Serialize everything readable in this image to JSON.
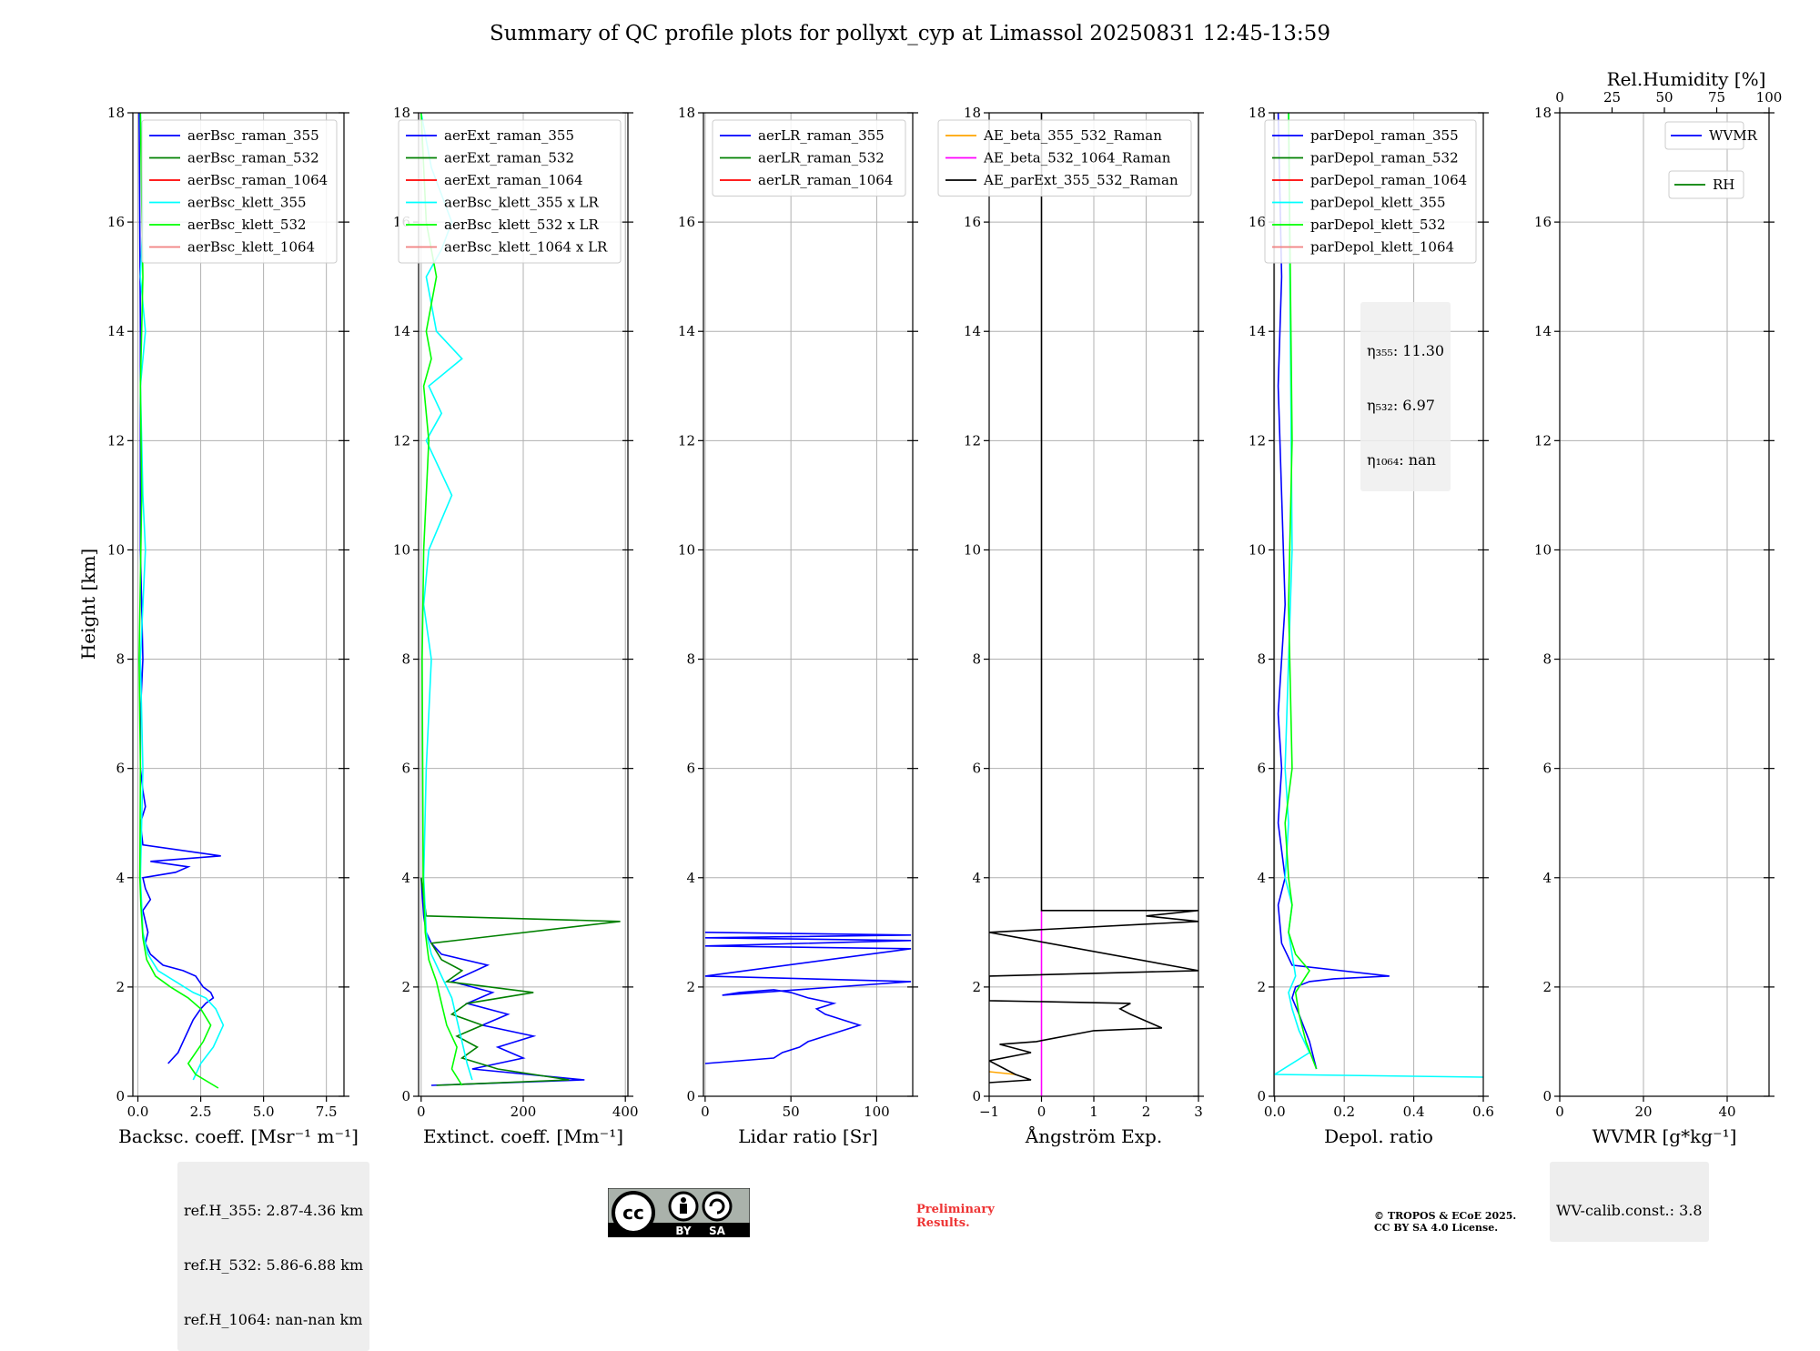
{
  "title": "Summary of QC profile plots for pollyxt_cyp at Limassol 20250831 12:45-13:59",
  "y_label": "Height [km]",
  "colors": {
    "blue": "#0000ff",
    "green": "#008000",
    "red": "#ff0000",
    "cyan": "#00ffff",
    "lime": "#00ff00",
    "salmon": "#f08080",
    "orange": "#ffa500",
    "magenta": "#ff00ff",
    "black": "#000000"
  },
  "chart_data": [
    {
      "type": "line",
      "xlabel": "Backsc. coeff. [Msr⁻¹ m⁻¹]",
      "ylabel": "Height [km]",
      "xlim": [
        -0.2,
        8.2
      ],
      "ylim": [
        0,
        18
      ],
      "xticks": [
        0,
        2.5,
        5.0,
        7.5
      ],
      "xtick_labels": [
        "0.0",
        "2.5",
        "5.0",
        "7.5"
      ],
      "yticks": [
        0,
        2,
        4,
        6,
        8,
        10,
        12,
        14,
        16,
        18
      ],
      "legend": "top-right",
      "grid": true,
      "series": [
        {
          "name": "aerBsc_raman_355",
          "color": "#0000ff",
          "x": [
            1.2,
            1.4,
            1.6,
            1.8,
            2.0,
            2.2,
            2.5,
            2.7,
            3.0,
            2.9,
            2.6,
            2.3,
            1.8,
            1.0,
            0.5,
            0.3,
            0.4,
            0.3,
            0.2,
            0.5,
            0.3,
            0.2,
            1.5,
            2.0,
            0.5,
            3.3,
            0.2,
            0.1,
            0.3,
            0.2,
            0.1,
            0.1,
            0.2,
            0.1,
            0.1,
            0.05
          ],
          "y": [
            0.6,
            0.7,
            0.8,
            1.0,
            1.2,
            1.4,
            1.6,
            1.7,
            1.8,
            1.9,
            2.0,
            2.2,
            2.3,
            2.4,
            2.6,
            2.8,
            3.0,
            3.2,
            3.4,
            3.6,
            3.8,
            4.0,
            4.1,
            4.2,
            4.3,
            4.4,
            4.6,
            5.0,
            5.3,
            5.6,
            6.0,
            7.0,
            8.0,
            10.0,
            14.0,
            18.0
          ]
        },
        {
          "name": "aerBsc_raman_532",
          "color": "#008000",
          "x": [],
          "y": []
        },
        {
          "name": "aerBsc_raman_1064",
          "color": "#ff0000",
          "x": [],
          "y": []
        },
        {
          "name": "aerBsc_klett_355",
          "color": "#00ffff",
          "x": [
            2.2,
            2.5,
            3.0,
            3.4,
            3.1,
            2.7,
            2.2,
            1.5,
            0.8,
            0.4,
            0.2,
            0.15,
            0.1,
            0.2,
            0.1,
            0.3,
            0.2,
            0.15,
            0.1,
            0.3,
            0.1,
            0.2,
            0.1
          ],
          "y": [
            0.3,
            0.6,
            0.9,
            1.3,
            1.6,
            1.8,
            1.9,
            2.1,
            2.3,
            2.6,
            3.0,
            3.5,
            4.0,
            6.0,
            8.0,
            10.0,
            11.0,
            12.0,
            13.0,
            14.0,
            15.0,
            16.0,
            18.0
          ]
        },
        {
          "name": "aerBsc_klett_532",
          "color": "#00ff00",
          "x": [
            3.2,
            2.3,
            2.0,
            2.6,
            2.9,
            2.5,
            2.0,
            1.3,
            0.7,
            0.35,
            0.2,
            0.12,
            0.08,
            0.1,
            0.05,
            0.15,
            0.1,
            0.2,
            0.1
          ],
          "y": [
            0.15,
            0.4,
            0.6,
            1.0,
            1.3,
            1.6,
            1.8,
            2.0,
            2.2,
            2.5,
            2.9,
            3.5,
            4.0,
            6.0,
            8.0,
            11.0,
            13.0,
            15.0,
            18.0
          ]
        },
        {
          "name": "aerBsc_klett_1064",
          "color": "#f08080",
          "x": [],
          "y": []
        }
      ]
    },
    {
      "type": "line",
      "xlabel": "Extinct. coeff. [Mm⁻¹]",
      "xlim": [
        -5,
        405
      ],
      "ylim": [
        0,
        18
      ],
      "xticks": [
        0,
        200,
        400
      ],
      "xtick_labels": [
        "0",
        "200",
        "400"
      ],
      "yticks": [
        0,
        2,
        4,
        6,
        8,
        10,
        12,
        14,
        16,
        18
      ],
      "legend": "top-right",
      "grid": true,
      "series": [
        {
          "name": "aerExt_raman_355",
          "color": "#0000ff",
          "x": [
            20,
            320,
            100,
            200,
            150,
            220,
            120,
            170,
            90,
            140,
            60,
            130,
            40,
            20,
            10,
            5,
            0
          ],
          "y": [
            0.2,
            0.3,
            0.5,
            0.7,
            0.9,
            1.1,
            1.3,
            1.5,
            1.7,
            1.9,
            2.1,
            2.4,
            2.6,
            2.8,
            3.0,
            3.3,
            4.0
          ]
        },
        {
          "name": "aerExt_raman_532",
          "color": "#008000",
          "x": [
            30,
            290,
            150,
            80,
            110,
            70,
            120,
            60,
            90,
            220,
            50,
            80,
            40,
            20,
            390,
            10,
            0
          ],
          "y": [
            0.2,
            0.3,
            0.5,
            0.7,
            0.9,
            1.1,
            1.3,
            1.5,
            1.7,
            1.9,
            2.1,
            2.3,
            2.5,
            2.8,
            3.2,
            3.3,
            4.0
          ]
        },
        {
          "name": "aerExt_raman_1064",
          "color": "#ff0000",
          "x": [],
          "y": []
        },
        {
          "name": "aerBsc_klett_355 x LR",
          "color": "#00ffff",
          "x": [
            100,
            90,
            80,
            70,
            60,
            40,
            20,
            10,
            5,
            10,
            20,
            5,
            15,
            60,
            10,
            40,
            15,
            80,
            30,
            20,
            10,
            40,
            60,
            20,
            0
          ],
          "y": [
            0.3,
            0.6,
            1.0,
            1.4,
            1.8,
            2.2,
            2.6,
            3.0,
            4.0,
            6.0,
            8.0,
            9.0,
            10.0,
            11.0,
            12.0,
            12.5,
            13.0,
            13.5,
            14.0,
            14.5,
            15.0,
            15.5,
            16.0,
            17.0,
            18.0
          ]
        },
        {
          "name": "aerBsc_klett_532 x LR",
          "color": "#00ff00",
          "x": [
            80,
            60,
            70,
            50,
            40,
            30,
            15,
            8,
            4,
            3,
            2,
            5,
            10,
            15,
            5,
            20,
            10,
            30,
            10,
            0
          ],
          "y": [
            0.2,
            0.5,
            0.9,
            1.3,
            1.7,
            2.1,
            2.5,
            3.0,
            4.0,
            6.0,
            8.0,
            10.0,
            11.0,
            12.0,
            13.0,
            13.5,
            14.0,
            15.0,
            16.0,
            18.0
          ]
        },
        {
          "name": "aerBsc_klett_1064 x LR",
          "color": "#f08080",
          "x": [],
          "y": []
        }
      ]
    },
    {
      "type": "line",
      "xlabel": "Lidar ratio [Sr]",
      "xlim": [
        -1,
        121
      ],
      "ylim": [
        0,
        18
      ],
      "xticks": [
        0,
        50,
        100
      ],
      "xtick_labels": [
        "0",
        "50",
        "100"
      ],
      "yticks": [
        0,
        2,
        4,
        6,
        8,
        10,
        12,
        14,
        16,
        18
      ],
      "legend": "top-right",
      "grid": true,
      "series": [
        {
          "name": "aerLR_raman_355",
          "color": "#0000ff",
          "x": [
            0,
            40,
            45,
            55,
            60,
            70,
            90,
            80,
            70,
            65,
            75,
            60,
            50,
            40,
            20,
            10,
            120,
            0,
            120,
            0,
            120,
            0,
            120,
            0
          ],
          "y": [
            0.6,
            0.7,
            0.8,
            0.9,
            1.0,
            1.1,
            1.3,
            1.4,
            1.5,
            1.6,
            1.7,
            1.8,
            1.9,
            1.95,
            1.9,
            1.85,
            2.1,
            2.2,
            2.7,
            2.75,
            2.85,
            2.9,
            2.95,
            3.0
          ]
        },
        {
          "name": "aerLR_raman_532",
          "color": "#008000",
          "x": [],
          "y": []
        },
        {
          "name": "aerLR_raman_1064",
          "color": "#ff0000",
          "x": [],
          "y": []
        }
      ]
    },
    {
      "type": "line",
      "xlabel": "Ångström Exp.",
      "xlim": [
        -1,
        3
      ],
      "ylim": [
        0,
        18
      ],
      "xticks": [
        -1,
        0,
        1,
        2,
        3
      ],
      "xtick_labels": [
        "−1",
        "0",
        "1",
        "2",
        "3"
      ],
      "yticks": [
        0,
        2,
        4,
        6,
        8,
        10,
        12,
        14,
        16,
        18
      ],
      "legend": "top-right",
      "grid": true,
      "series": [
        {
          "name": "AE_beta_355_532_Raman",
          "color": "#ffa500",
          "x": [
            -1,
            -0.5
          ],
          "y": [
            0.45,
            0.4
          ]
        },
        {
          "name": "AE_beta_532_1064_Raman",
          "color": "#ff00ff",
          "x": [
            0,
            0
          ],
          "y": [
            0,
            3.4
          ]
        },
        {
          "name": "AE_parExt_355_532_Raman",
          "color": "#000000",
          "x": [
            -1,
            -0.2,
            -0.5,
            -1,
            -0.2,
            -0.8,
            -0.1,
            1.0,
            2.3,
            1.7,
            1.5,
            1.7,
            -1,
            -1,
            3.0,
            -1,
            3.0,
            2.0,
            3.0,
            0,
            0
          ],
          "y": [
            0.25,
            0.3,
            0.4,
            0.65,
            0.8,
            0.95,
            1.0,
            1.2,
            1.25,
            1.5,
            1.6,
            1.7,
            1.75,
            2.2,
            2.3,
            3.0,
            3.2,
            3.3,
            3.4,
            3.4,
            18.0
          ]
        }
      ]
    },
    {
      "type": "line",
      "xlabel": "Depol. ratio",
      "xlim": [
        -0.002,
        0.6
      ],
      "ylim": [
        0,
        18
      ],
      "xticks": [
        0,
        0.2,
        0.4,
        0.6
      ],
      "xtick_labels": [
        "0.0",
        "0.2",
        "0.4",
        "0.6"
      ],
      "yticks": [
        0,
        2,
        4,
        6,
        8,
        10,
        12,
        14,
        16,
        18
      ],
      "legend": "top-right",
      "grid": true,
      "series": [
        {
          "name": "parDepol_raman_355",
          "color": "#0000ff",
          "x": [
            0.12,
            0.1,
            0.07,
            0.05,
            0.06,
            0.1,
            0.17,
            0.33,
            0.05,
            0.02,
            0.01,
            0.03,
            0.02,
            0.01,
            0.02,
            0.01,
            0.03,
            0.02,
            0.01,
            0.02,
            0.01
          ],
          "y": [
            0.5,
            1.0,
            1.5,
            1.8,
            2.0,
            2.1,
            2.15,
            2.2,
            2.4,
            2.8,
            3.5,
            4.0,
            4.5,
            5.0,
            6.0,
            7.0,
            9.0,
            11.0,
            13.0,
            15.0,
            18.0
          ]
        },
        {
          "name": "parDepol_raman_532",
          "color": "#008000",
          "x": [],
          "y": []
        },
        {
          "name": "parDepol_raman_1064",
          "color": "#ff0000",
          "x": [],
          "y": []
        },
        {
          "name": "parDepol_klett_355",
          "color": "#00ffff",
          "x": [
            0.6,
            0.0,
            0.1,
            0.07,
            0.05,
            0.04,
            0.06,
            0.05,
            0.04,
            0.05,
            0.03,
            0.04,
            0.03,
            0.05,
            0.04
          ],
          "y": [
            0.35,
            0.4,
            0.8,
            1.2,
            1.6,
            1.9,
            2.2,
            2.6,
            3.0,
            3.5,
            4.0,
            5.0,
            6.0,
            10.0,
            18.0
          ]
        },
        {
          "name": "parDepol_klett_532",
          "color": "#00ff00",
          "x": [
            0.12,
            0.09,
            0.07,
            0.06,
            0.08,
            0.1,
            0.06,
            0.04,
            0.05,
            0.04,
            0.03,
            0.05,
            0.04,
            0.05,
            0.04
          ],
          "y": [
            0.5,
            1.0,
            1.5,
            1.9,
            2.1,
            2.3,
            2.6,
            3.0,
            3.5,
            4.0,
            5.0,
            6.0,
            9.0,
            12.0,
            18.0
          ]
        },
        {
          "name": "parDepol_klett_1064",
          "color": "#f08080",
          "x": [],
          "y": []
        }
      ]
    },
    {
      "type": "line",
      "xlabel": "WVMR [g*kg⁻¹]",
      "x2label": "Rel.Humidity [%]",
      "xlim": [
        0,
        50
      ],
      "ylim": [
        0,
        18
      ],
      "x2lim": [
        0,
        100
      ],
      "xticks": [
        0,
        20,
        40
      ],
      "xtick_labels": [
        "0",
        "20",
        "40"
      ],
      "x2ticks": [
        0,
        25,
        50,
        75,
        100
      ],
      "x2tick_labels": [
        "0",
        "25",
        "50",
        "75",
        "100"
      ],
      "yticks": [
        0,
        2,
        4,
        6,
        8,
        10,
        12,
        14,
        16,
        18
      ],
      "legend": "top-right",
      "grid": true,
      "series": [
        {
          "name": "WVMR",
          "color": "#0000ff",
          "x": [],
          "y": []
        },
        {
          "name": "RH",
          "color": "#008000",
          "x": [],
          "y": []
        }
      ]
    }
  ],
  "annotations": {
    "ref_heights": [
      "ref.H_355: 2.87-4.36 km",
      "ref.H_532: 5.86-6.88 km",
      "ref.H_1064: nan-nan km"
    ],
    "eta": [
      "η₃₅₅: 11.30",
      "η₅₃₂: 6.97",
      "η₁₀₆₄: nan"
    ],
    "wv_calib": "WV-calib.const.: 3.8",
    "preliminary": "Preliminary\nResults.",
    "copyright": "© TROPOS & ECoE 2025.\nCC BY SA 4.0 License.",
    "cc_by": "BY",
    "cc_sa": "SA"
  }
}
